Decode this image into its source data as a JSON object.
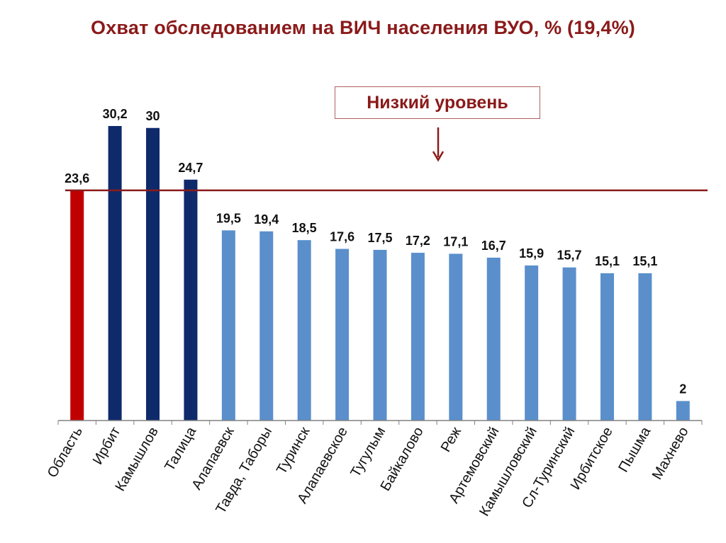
{
  "title": "Охват обследованием на ВИЧ населения ВУО, % (19,4%)",
  "annotation": "Низкий уровень",
  "colors": {
    "oblast": "#c00000",
    "above_threshold": "#0f2a6b",
    "below_threshold": "#5a8fcc",
    "threshold_line": "#8b1a1a",
    "title": "#8b1a1a"
  },
  "chart_data": {
    "type": "bar",
    "title": "Охват обследованием на ВИЧ населения ВУО, % (19,4%)",
    "xlabel": "",
    "ylabel": "",
    "ylim": [
      0,
      32
    ],
    "grid": false,
    "legend": "none",
    "threshold": 23.6,
    "categories": [
      "Область",
      "Ирбит",
      "Камышлов",
      "Талица",
      "Алапаевск",
      "Тавда, Таборы",
      "Туринск",
      "Алапаевское",
      "Тугулым",
      "Байкалово",
      "Реж",
      "Артемовский",
      "Камышловский",
      "Сл-Туринский",
      "Ирбитское",
      "Пышма",
      "Махнево"
    ],
    "values": [
      23.6,
      30.2,
      30,
      24.7,
      19.5,
      19.4,
      18.5,
      17.6,
      17.5,
      17.2,
      17.1,
      16.7,
      15.9,
      15.7,
      15.1,
      15.1,
      2
    ],
    "value_labels": [
      "23,6",
      "30,2",
      "30",
      "24,7",
      "19,5",
      "19,4",
      "18,5",
      "17,6",
      "17,5",
      "17,2",
      "17,1",
      "16,7",
      "15,9",
      "15,7",
      "15,1",
      "15,1",
      "2"
    ],
    "bar_groups": [
      "oblast",
      "above_threshold",
      "above_threshold",
      "above_threshold",
      "below_threshold",
      "below_threshold",
      "below_threshold",
      "below_threshold",
      "below_threshold",
      "below_threshold",
      "below_threshold",
      "below_threshold",
      "below_threshold",
      "below_threshold",
      "below_threshold",
      "below_threshold",
      "below_threshold"
    ]
  }
}
